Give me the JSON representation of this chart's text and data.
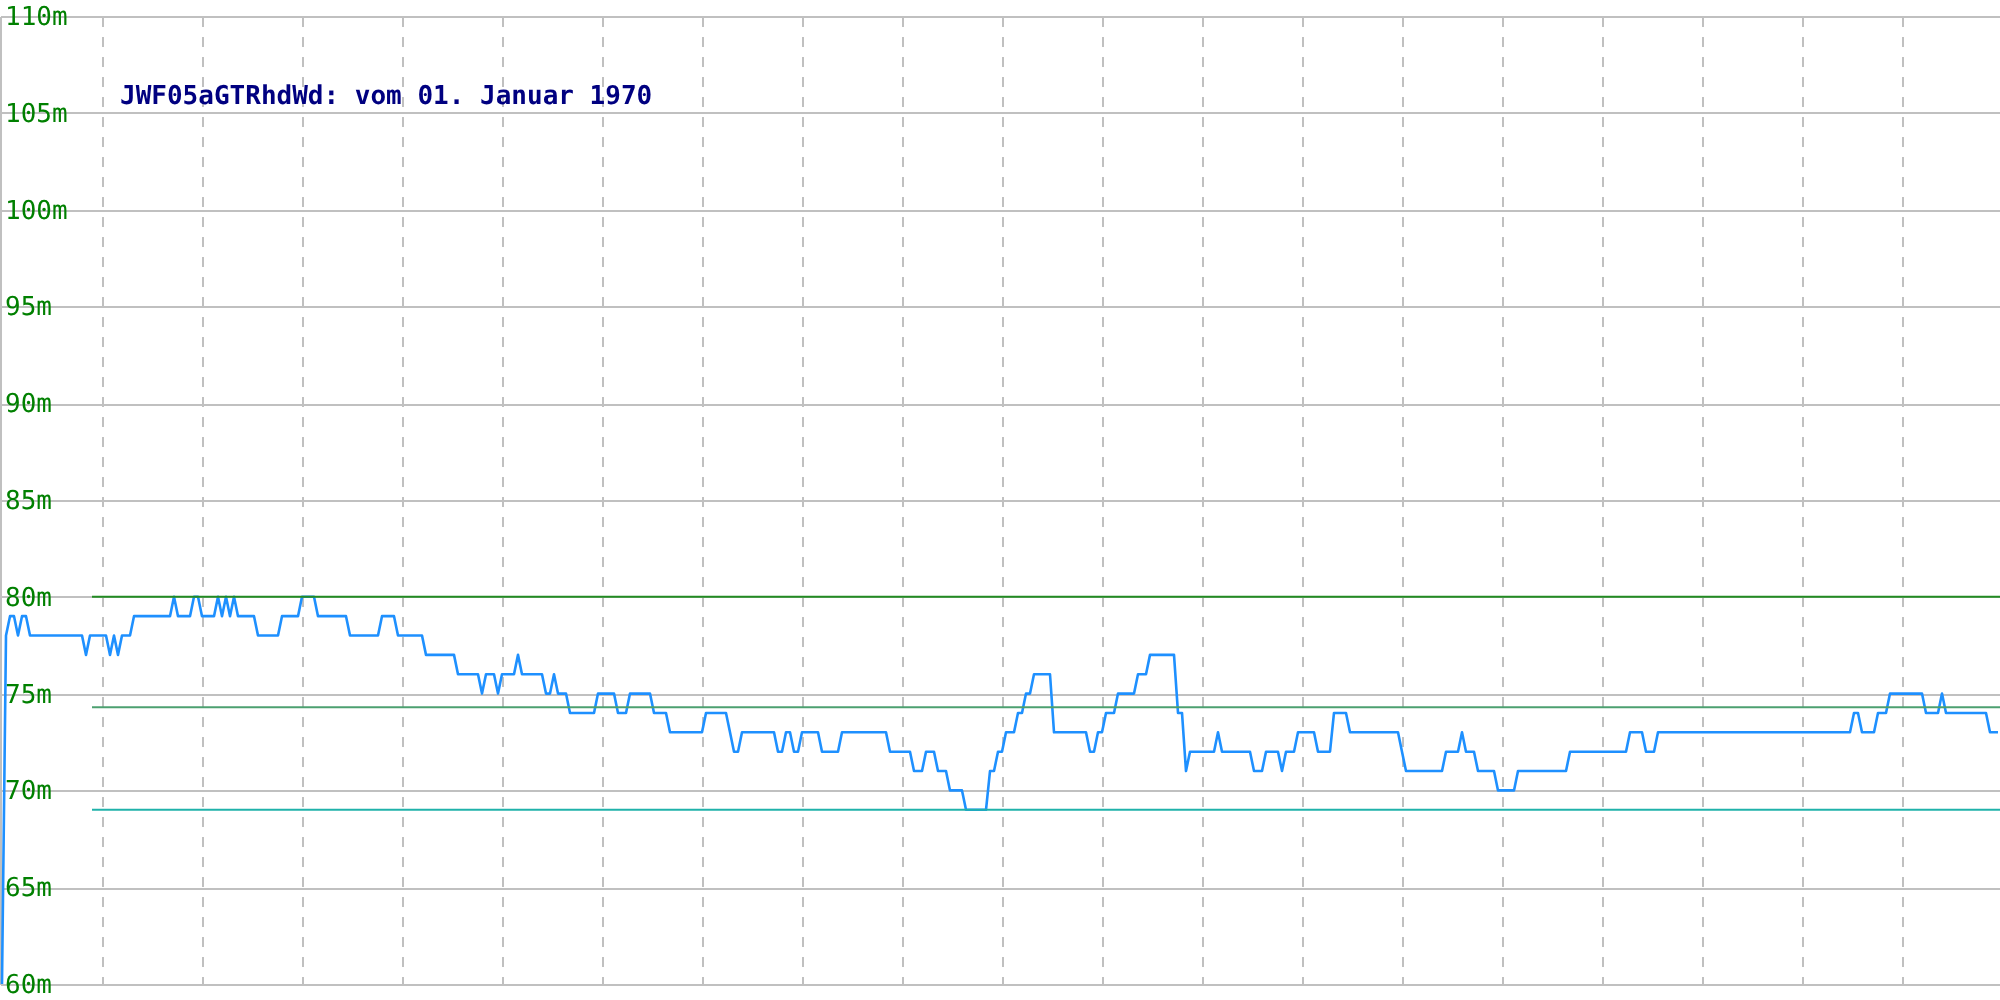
{
  "chart_data": {
    "type": "line",
    "title": "JWF05aGTRhdWd: vom 01. Januar 1970",
    "categories": [
      null,
      null,
      null,
      null,
      null,
      null,
      null,
      null,
      null,
      null,
      null,
      null,
      null,
      null,
      null,
      null,
      null,
      null,
      null,
      null,
      null,
      null,
      null,
      null,
      null,
      null,
      null,
      null,
      null,
      null,
      null,
      null,
      null,
      null,
      null,
      null,
      null,
      null,
      null,
      null,
      null,
      null,
      null,
      null,
      null,
      null,
      null,
      null,
      null,
      null,
      null,
      null,
      null,
      null,
      null,
      null,
      null,
      null,
      null,
      null,
      null,
      null,
      null,
      null,
      null,
      null,
      null,
      null,
      null,
      null,
      null,
      null,
      null,
      null,
      null,
      null,
      null,
      null,
      null,
      null,
      null,
      null,
      null,
      null,
      null,
      null,
      null,
      null,
      null,
      null,
      null,
      null,
      null,
      null,
      null,
      null,
      null,
      null,
      null,
      null,
      null,
      null,
      null,
      null,
      null,
      null,
      null,
      null,
      null,
      null,
      null,
      null,
      null,
      null,
      null,
      null,
      null,
      null,
      null,
      null,
      null,
      null,
      null,
      null,
      null,
      null,
      null,
      null,
      null,
      null,
      null,
      null,
      null,
      null,
      null,
      null,
      null,
      null,
      null,
      null,
      null,
      null,
      null,
      null,
      null,
      null,
      null,
      null,
      null,
      null,
      null,
      null,
      null,
      null,
      null,
      null,
      null,
      null,
      null,
      null,
      null,
      null,
      null,
      null,
      null,
      null,
      null,
      null,
      null,
      null,
      null,
      null,
      null,
      null,
      null,
      null,
      null,
      null,
      null,
      null,
      null,
      null,
      null,
      null,
      null,
      null,
      null,
      null,
      null,
      null,
      null,
      null,
      null,
      null,
      null,
      null,
      null,
      null,
      null,
      null,
      null,
      null,
      null,
      null,
      null,
      null,
      null,
      null,
      null,
      null,
      null,
      null,
      null,
      null,
      null,
      null,
      null,
      null,
      null,
      null,
      null,
      null,
      null,
      null,
      null,
      null,
      null,
      null,
      null,
      null,
      null,
      null,
      null,
      null,
      null,
      null,
      null,
      null,
      null,
      null,
      null,
      null,
      null,
      null,
      null,
      null,
      null,
      null,
      null,
      null,
      null,
      null,
      null,
      null,
      null,
      null,
      null,
      null,
      null,
      null,
      null,
      null,
      null,
      null,
      null,
      null,
      null,
      null,
      null,
      null,
      null,
      null,
      null,
      null,
      null,
      null,
      null,
      null,
      null,
      null,
      null,
      null,
      null,
      null,
      null,
      null,
      null,
      null,
      null,
      null,
      null,
      null,
      null,
      null,
      null,
      null,
      null,
      null,
      null,
      null,
      null,
      null,
      null,
      null,
      null,
      null,
      null,
      null,
      null,
      null,
      null,
      null,
      null,
      null,
      null,
      null,
      null,
      null,
      null,
      null,
      null,
      null,
      null,
      null,
      null,
      null,
      null,
      null,
      null,
      null,
      null,
      null,
      null,
      null,
      null,
      null,
      null,
      null,
      null,
      null,
      null,
      null,
      null,
      null,
      null,
      null,
      null,
      null,
      null,
      null,
      null,
      null,
      null,
      null,
      null,
      null,
      null,
      null,
      null,
      null,
      null,
      null,
      null,
      null,
      null,
      null,
      null,
      null,
      null,
      null,
      null,
      null,
      null,
      null,
      null,
      null,
      null,
      null,
      null,
      null,
      null,
      null,
      null,
      null,
      null,
      null,
      null,
      null,
      null,
      null,
      null,
      null,
      null,
      null,
      null,
      null,
      null,
      null,
      null,
      null,
      null,
      null,
      null,
      null,
      null,
      null,
      null,
      null,
      null,
      null,
      null,
      null,
      null,
      null,
      null,
      null,
      null,
      null,
      null,
      null,
      null,
      null,
      null,
      null,
      null,
      null,
      null,
      null,
      null,
      null,
      null,
      null,
      null,
      null,
      null,
      null,
      null,
      null,
      null,
      null,
      null,
      null,
      null,
      null,
      null,
      null,
      null,
      null,
      null,
      null,
      null,
      null,
      null,
      null,
      null,
      null,
      null,
      null,
      null,
      null,
      null,
      null,
      null,
      null,
      null,
      null,
      null,
      null,
      null,
      null,
      null,
      null,
      null,
      null,
      null,
      null,
      null,
      null,
      null,
      null,
      null,
      null,
      null,
      null,
      null,
      null,
      null,
      null,
      null,
      null,
      null,
      null,
      null,
      null,
      null,
      null,
      null,
      null,
      null,
      null
    ],
    "series": [
      {
        "color": "#1e90ff",
        "values": [
          60,
          78,
          79,
          79,
          78,
          79,
          79,
          78,
          78,
          78,
          78,
          78,
          78,
          78,
          78,
          78,
          78,
          78,
          78,
          78,
          78,
          77,
          78,
          78,
          78,
          78,
          78,
          77,
          78,
          77,
          78,
          78,
          78,
          79,
          79,
          79,
          79,
          79,
          79,
          79,
          79,
          79,
          79,
          80,
          79,
          79,
          79,
          79,
          80,
          80,
          79,
          79,
          79,
          79,
          80,
          79,
          80,
          79,
          80,
          79,
          79,
          79,
          79,
          79,
          78,
          78,
          78,
          78,
          78,
          78,
          79,
          79,
          79,
          79,
          79,
          80,
          80,
          80,
          80,
          79,
          79,
          79,
          79,
          79,
          79,
          79,
          79,
          78,
          78,
          78,
          78,
          78,
          78,
          78,
          78,
          79,
          79,
          79,
          79,
          78,
          78,
          78,
          78,
          78,
          78,
          78,
          77,
          77,
          77,
          77,
          77,
          77,
          77,
          77,
          76,
          76,
          76,
          76,
          76,
          76,
          75,
          76,
          76,
          76,
          75,
          76,
          76,
          76,
          76,
          77,
          76,
          76,
          76,
          76,
          76,
          76,
          75,
          75,
          76,
          75,
          75,
          75,
          74,
          74,
          74,
          74,
          74,
          74,
          74,
          75,
          75,
          75,
          75,
          75,
          74,
          74,
          74,
          75,
          75,
          75,
          75,
          75,
          75,
          74,
          74,
          74,
          74,
          73,
          73,
          73,
          73,
          73,
          73,
          73,
          73,
          73,
          74,
          74,
          74,
          74,
          74,
          74,
          73,
          72,
          72,
          73,
          73,
          73,
          73,
          73,
          73,
          73,
          73,
          73,
          72,
          72,
          73,
          73,
          72,
          72,
          73,
          73,
          73,
          73,
          73,
          72,
          72,
          72,
          72,
          72,
          73,
          73,
          73,
          73,
          73,
          73,
          73,
          73,
          73,
          73,
          73,
          73,
          72,
          72,
          72,
          72,
          72,
          72,
          71,
          71,
          71,
          72,
          72,
          72,
          71,
          71,
          71,
          70,
          70,
          70,
          70,
          69,
          69,
          69,
          69,
          69,
          69,
          71,
          71,
          72,
          72,
          73,
          73,
          73,
          74,
          74,
          75,
          75,
          76,
          76,
          76,
          76,
          76,
          73,
          73,
          73,
          73,
          73,
          73,
          73,
          73,
          73,
          72,
          72,
          73,
          73,
          74,
          74,
          74,
          75,
          75,
          75,
          75,
          75,
          76,
          76,
          76,
          77,
          77,
          77,
          77,
          77,
          77,
          77,
          74,
          74,
          71,
          72,
          72,
          72,
          72,
          72,
          72,
          72,
          73,
          72,
          72,
          72,
          72,
          72,
          72,
          72,
          72,
          71,
          71,
          71,
          72,
          72,
          72,
          72,
          71,
          72,
          72,
          72,
          73,
          73,
          73,
          73,
          73,
          72,
          72,
          72,
          72,
          74,
          74,
          74,
          74,
          73,
          73,
          73,
          73,
          73,
          73,
          73,
          73,
          73,
          73,
          73,
          73,
          73,
          72,
          71,
          71,
          71,
          71,
          71,
          71,
          71,
          71,
          71,
          71,
          72,
          72,
          72,
          72,
          73,
          72,
          72,
          72,
          71,
          71,
          71,
          71,
          71,
          70,
          70,
          70,
          70,
          70,
          71,
          71,
          71,
          71,
          71,
          71,
          71,
          71,
          71,
          71,
          71,
          71,
          71,
          72,
          72,
          72,
          72,
          72,
          72,
          72,
          72,
          72,
          72,
          72,
          72,
          72,
          72,
          72,
          73,
          73,
          73,
          73,
          72,
          72,
          72,
          73,
          73,
          73,
          73,
          73,
          73,
          73,
          73,
          73,
          73,
          73,
          73,
          73,
          73,
          73,
          73,
          73,
          73,
          73,
          73,
          73,
          73,
          73,
          73,
          73,
          73,
          73,
          73,
          73,
          73,
          73,
          73,
          73,
          73,
          73,
          73,
          73,
          73,
          73,
          73,
          73,
          73,
          73,
          73,
          73,
          73,
          73,
          73,
          73,
          74,
          74,
          73,
          73,
          73,
          73,
          74,
          74,
          74,
          75,
          75,
          75,
          75,
          75,
          75,
          75,
          75,
          75,
          74,
          74,
          74,
          74,
          75,
          74,
          74,
          74,
          74,
          74,
          74,
          74,
          74,
          74,
          74,
          74,
          73,
          73,
          73
        ]
      }
    ],
    "ylim": [
      60,
      110
    ],
    "yticks": [
      {
        "value": 60,
        "label": "60m"
      },
      {
        "value": 65,
        "label": "65m"
      },
      {
        "value": 70,
        "label": "70m"
      },
      {
        "value": 75,
        "label": "75m"
      },
      {
        "value": 80,
        "label": "80m"
      },
      {
        "value": 85,
        "label": "85m"
      },
      {
        "value": 90,
        "label": "90m"
      },
      {
        "value": 95,
        "label": "95m"
      },
      {
        "value": 100,
        "label": "100m"
      },
      {
        "value": 105,
        "label": "105m"
      },
      {
        "value": 110,
        "label": "110m"
      }
    ],
    "tick_labels": "y",
    "grid": true,
    "marker": "none",
    "line_style": "solid",
    "ref_lines": [
      {
        "axis": "y",
        "value": 80,
        "color": "#228b22"
      },
      {
        "axis": "y",
        "value": 74.3,
        "color": "#4ca070"
      },
      {
        "axis": "y",
        "value": 69,
        "color": "#20b2aa"
      }
    ]
  }
}
